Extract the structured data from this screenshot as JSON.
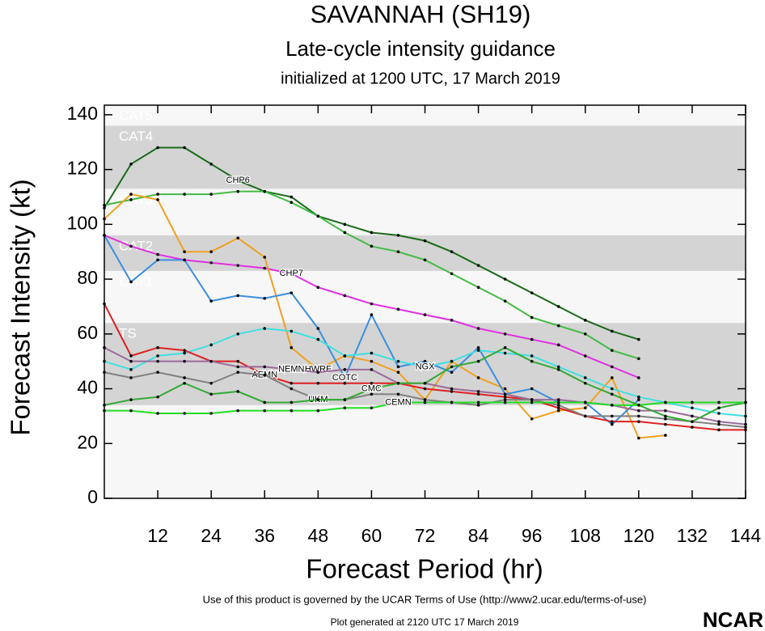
{
  "chart_data": {
    "type": "line",
    "title": "SAVANNAH (SH19)",
    "subtitle": "Late-cycle intensity guidance",
    "initialized": "initialized at 1200 UTC, 17 March 2019",
    "x_label": "Forecast Period (hr)",
    "y_label": "Forecast Intensity (kt)",
    "footer": "Use of this product is governed by the UCAR Terms of Use (http://www2.ucar.edu/terms-of-use)",
    "generated": "Plot generated at 2120 UTC   17 March 2019",
    "logo": "NCAR",
    "xlim": [
      0,
      144
    ],
    "ylim": [
      0,
      143.5
    ],
    "xticks": [
      12,
      24,
      36,
      48,
      60,
      72,
      84,
      96,
      108,
      120,
      132,
      144
    ],
    "yticks": [
      0,
      20,
      40,
      60,
      80,
      100,
      120,
      140
    ],
    "bands": [
      {
        "label": "TS",
        "from": 34,
        "to": 64,
        "shaded": true
      },
      {
        "label": "CAT1",
        "from": 64,
        "to": 83,
        "shaded": false
      },
      {
        "label": "CAT2",
        "from": 83,
        "to": 96,
        "shaded": true
      },
      {
        "label": "CAT3",
        "from": 96,
        "to": 113,
        "shaded": false
      },
      {
        "label": "CAT4",
        "from": 113,
        "to": 136,
        "shaded": true
      },
      {
        "label": "CAT5",
        "from": 136,
        "to": 143.5,
        "shaded": false
      }
    ],
    "x": [
      0,
      6,
      12,
      18,
      24,
      30,
      36,
      42,
      48,
      54,
      60,
      66,
      72,
      78,
      84,
      90,
      96,
      102,
      108,
      114,
      120,
      126,
      132,
      138,
      144
    ],
    "series": [
      {
        "name": "CHP6",
        "color": "#1a6b1a",
        "values": [
          106,
          122,
          128,
          128,
          122,
          116,
          112,
          110,
          103,
          100,
          97,
          96,
          94,
          90,
          85,
          80,
          75,
          70,
          65,
          61,
          58,
          null,
          null,
          null,
          null
        ]
      },
      {
        "color": "#44bb44",
        "values": [
          107,
          109,
          111,
          111,
          111,
          112,
          112,
          108,
          103,
          97,
          92,
          90,
          87,
          82,
          77,
          72,
          66,
          63,
          60,
          54,
          51,
          null,
          null,
          null,
          null
        ]
      },
      {
        "name": "CHP7",
        "color": "#e030e0",
        "values": [
          96,
          92,
          89,
          87,
          86,
          85,
          84,
          82,
          77,
          74,
          71,
          69,
          67,
          65,
          62,
          60,
          58,
          56,
          52,
          48,
          44,
          null,
          null,
          null,
          null
        ]
      },
      {
        "name": "HWRF",
        "color": "#f0a020",
        "values": [
          102,
          111,
          109,
          90,
          90,
          95,
          88,
          55,
          47,
          52,
          50,
          46,
          36,
          50,
          44,
          40,
          29,
          32,
          33,
          44,
          22,
          23,
          null,
          null,
          null
        ]
      },
      {
        "name": "COTC",
        "color": "#3a8ee0",
        "values": [
          96,
          79,
          87,
          87,
          72,
          74,
          73,
          75,
          62,
          44,
          67,
          48,
          50,
          46,
          55,
          38,
          40,
          35,
          35,
          27,
          36,
          null,
          null,
          null,
          null
        ]
      },
      {
        "name": "NGX",
        "color": "#40e0e0",
        "values": [
          50,
          47,
          52,
          53,
          56,
          60,
          62,
          61,
          58,
          52,
          53,
          50,
          48,
          50,
          54,
          53,
          52,
          48,
          44,
          40,
          37,
          35,
          33,
          31,
          30
        ]
      },
      {
        "name": "AEMN",
        "color": "#e02020",
        "values": [
          71,
          52,
          55,
          54,
          50,
          50,
          45,
          42,
          42,
          42,
          42,
          42,
          40,
          39,
          38,
          37,
          36,
          33,
          30,
          28,
          28,
          27,
          26,
          25,
          25
        ]
      },
      {
        "name": "NEMN",
        "color": "#9a6b9a",
        "values": [
          55,
          50,
          50,
          50,
          50,
          48,
          48,
          47,
          46,
          47,
          47,
          42,
          42,
          40,
          39,
          38,
          36,
          36,
          35,
          34,
          32,
          32,
          30,
          28,
          27
        ]
      },
      {
        "name": "UKM",
        "color": "#808080",
        "values": [
          46,
          44,
          46,
          44,
          42,
          46,
          45,
          40,
          36,
          36,
          38,
          38,
          36,
          35,
          34,
          36,
          36,
          34,
          30,
          30,
          30,
          29,
          28,
          27,
          26
        ]
      },
      {
        "name": "CMC",
        "color": "#33aa33",
        "values": [
          34,
          36,
          37,
          42,
          38,
          39,
          35,
          35,
          36,
          36,
          40,
          42,
          42,
          48,
          50,
          55,
          50,
          47,
          42,
          38,
          34,
          30,
          28,
          33,
          35
        ]
      },
      {
        "name": "CEMN",
        "color": "#22dd22",
        "values": [
          32,
          32,
          31,
          31,
          31,
          32,
          32,
          32,
          32,
          33,
          33,
          35,
          35,
          35,
          35,
          35,
          35,
          35,
          35,
          34,
          34,
          35,
          35,
          35,
          35
        ]
      }
    ]
  }
}
